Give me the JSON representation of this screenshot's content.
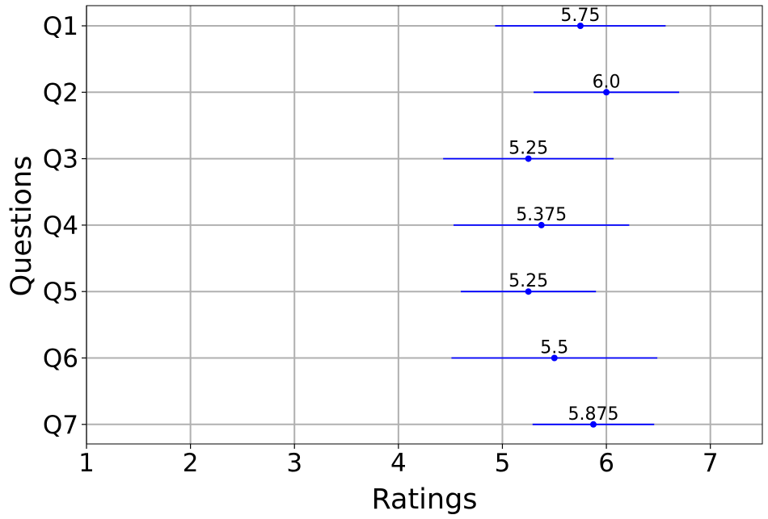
{
  "chart_data": {
    "type": "errorbar",
    "orientation": "horizontal",
    "categories": [
      "Q1",
      "Q2",
      "Q3",
      "Q4",
      "Q5",
      "Q6",
      "Q7"
    ],
    "values": [
      5.75,
      6.0,
      5.25,
      5.375,
      5.25,
      5.5,
      5.875
    ],
    "value_labels": [
      "5.75",
      "6.0",
      "5.25",
      "5.375",
      "5.25",
      "5.5",
      "5.875"
    ],
    "error_low": [
      4.93,
      5.3,
      4.43,
      4.53,
      4.6,
      4.51,
      5.29
    ],
    "error_high": [
      6.57,
      6.7,
      6.07,
      6.22,
      5.9,
      6.49,
      6.46
    ],
    "xlabel": "Ratings",
    "ylabel": "Questions",
    "xlim": [
      1,
      7.5
    ],
    "xticks": [
      1,
      2,
      3,
      4,
      5,
      6,
      7
    ],
    "grid": true,
    "color": "#0000ff"
  }
}
